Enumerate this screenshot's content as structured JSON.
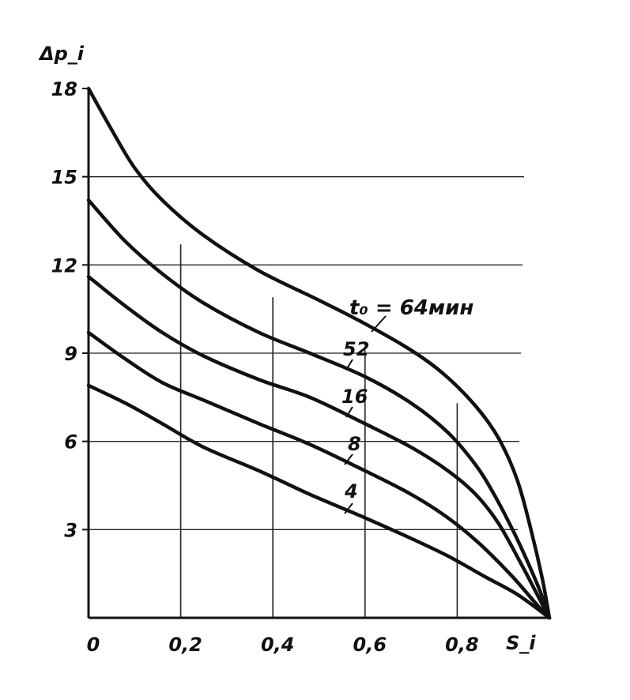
{
  "chart_data": {
    "type": "line",
    "ylabel": "Δp_i",
    "xlabel": "S_i",
    "xlim": [
      0,
      1
    ],
    "ylim": [
      0,
      18
    ],
    "x_ticks": [
      {
        "value": 0,
        "label": "0"
      },
      {
        "value": 0.2,
        "label": "0,2"
      },
      {
        "value": 0.4,
        "label": "0,4"
      },
      {
        "value": 0.6,
        "label": "0,6"
      },
      {
        "value": 0.8,
        "label": "0,8"
      }
    ],
    "y_ticks": [
      {
        "value": 3,
        "label": "3"
      },
      {
        "value": 6,
        "label": "6"
      },
      {
        "value": 9,
        "label": "9"
      },
      {
        "value": 12,
        "label": "12"
      },
      {
        "value": 15,
        "label": "15"
      },
      {
        "value": 18,
        "label": "18"
      }
    ],
    "grid": true,
    "series": [
      {
        "name": "t_0 = 64 мин",
        "x": [
          0,
          0.05,
          0.1,
          0.16,
          0.25,
          0.37,
          0.5,
          0.6,
          0.7,
          0.77,
          0.84,
          0.89,
          0.93,
          0.96,
          0.985,
          1.0
        ],
        "y": [
          18.0,
          16.6,
          15.3,
          14.2,
          13.0,
          11.8,
          10.8,
          10.0,
          9.1,
          8.3,
          7.2,
          6.1,
          4.7,
          3.0,
          1.3,
          0
        ]
      },
      {
        "name": "52",
        "x": [
          0,
          0.08,
          0.16,
          0.25,
          0.37,
          0.48,
          0.6,
          0.7,
          0.78,
          0.84,
          0.88,
          0.92,
          0.95,
          0.98,
          1.0
        ],
        "y": [
          14.2,
          12.8,
          11.7,
          10.7,
          9.7,
          9.0,
          8.2,
          7.3,
          6.3,
          5.2,
          4.2,
          3.0,
          2.0,
          0.9,
          0
        ]
      },
      {
        "name": "16",
        "x": [
          0,
          0.08,
          0.16,
          0.25,
          0.37,
          0.48,
          0.6,
          0.7,
          0.78,
          0.84,
          0.89,
          0.94,
          0.97,
          1.0
        ],
        "y": [
          11.6,
          10.6,
          9.7,
          8.9,
          8.1,
          7.5,
          6.6,
          5.8,
          5.0,
          4.2,
          3.2,
          1.8,
          0.9,
          0
        ]
      },
      {
        "name": "8",
        "x": [
          0,
          0.08,
          0.16,
          0.25,
          0.37,
          0.48,
          0.6,
          0.7,
          0.78,
          0.85,
          0.92,
          0.97,
          1.0
        ],
        "y": [
          9.7,
          8.8,
          8.0,
          7.4,
          6.6,
          5.9,
          5.0,
          4.2,
          3.4,
          2.5,
          1.4,
          0.5,
          0
        ]
      },
      {
        "name": "4",
        "x": [
          0,
          0.08,
          0.16,
          0.25,
          0.37,
          0.48,
          0.6,
          0.7,
          0.78,
          0.86,
          0.93,
          1.0
        ],
        "y": [
          7.9,
          7.3,
          6.6,
          5.8,
          5.0,
          4.2,
          3.4,
          2.7,
          2.1,
          1.4,
          0.8,
          0
        ]
      }
    ],
    "curve_labels": [
      "t₀ = 64мин",
      "52",
      "16",
      "8",
      "4"
    ]
  }
}
